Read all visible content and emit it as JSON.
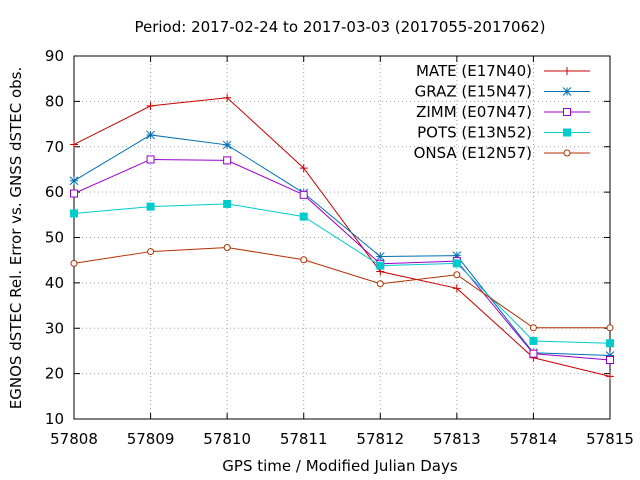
{
  "chart_data": {
    "type": "line",
    "title": "Period: 2017-02-24 to 2017-03-03 (2017055-2017062)",
    "xlabel": "GPS time / Modified Julian Days",
    "ylabel": "EGNOS dSTEC Rel. Error vs. GNSS dSTEC obs.",
    "x": [
      57808,
      57809,
      57810,
      57811,
      57812,
      57813,
      57814,
      57815
    ],
    "xlim": [
      57808,
      57815
    ],
    "ylim": [
      10,
      90
    ],
    "xticks": [
      57808,
      57809,
      57810,
      57811,
      57812,
      57813,
      57814,
      57815
    ],
    "yticks": [
      10,
      20,
      30,
      40,
      50,
      60,
      70,
      80,
      90
    ],
    "grid": true,
    "legend_position": "top-right",
    "series": [
      {
        "name": "MATE (E17N40)",
        "color": "#cc0000",
        "marker": "plus",
        "values": [
          70.5,
          79.0,
          80.8,
          65.3,
          42.5,
          38.8,
          23.5,
          19.4
        ]
      },
      {
        "name": "GRAZ (E15N47)",
        "color": "#0070b0",
        "marker": "star",
        "values": [
          62.5,
          72.6,
          70.4,
          59.8,
          45.8,
          46.0,
          24.6,
          24.0
        ]
      },
      {
        "name": "ZIMM (E07N47)",
        "color": "#9900cc",
        "marker": "open-square",
        "values": [
          59.7,
          67.2,
          67.0,
          59.4,
          44.2,
          44.8,
          24.4,
          23.0
        ]
      },
      {
        "name": "POTS (E13N52)",
        "color": "#00cccc",
        "marker": "filled-square",
        "values": [
          55.3,
          56.8,
          57.4,
          54.6,
          43.8,
          44.3,
          27.2,
          26.7
        ]
      },
      {
        "name": "ONSA (E12N57)",
        "color": "#b03000",
        "marker": "open-circle",
        "values": [
          44.3,
          46.9,
          47.8,
          45.1,
          39.8,
          41.8,
          30.1,
          30.1
        ]
      }
    ]
  }
}
